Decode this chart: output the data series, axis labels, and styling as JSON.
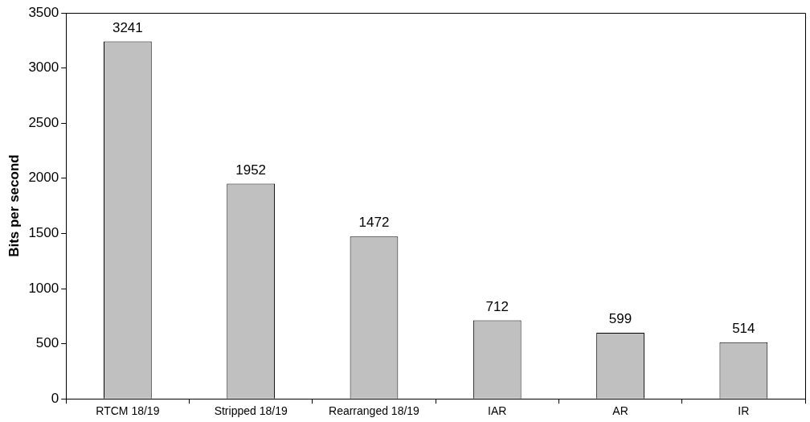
{
  "chart_data": {
    "type": "bar",
    "ylabel": "Bits per second",
    "categories": [
      "RTCM 18/19",
      "Stripped 18/19",
      "Rearranged 18/19",
      "IAR",
      "AR",
      "IR"
    ],
    "values": [
      3241,
      1952,
      1472,
      712,
      599,
      514
    ],
    "color": "#c0c0c0",
    "ylim": [
      0,
      3500
    ],
    "yticks": [
      0,
      500,
      1000,
      1500,
      2000,
      2500,
      3000,
      3500
    ],
    "grid": false,
    "legend": false,
    "data_labels": true
  }
}
